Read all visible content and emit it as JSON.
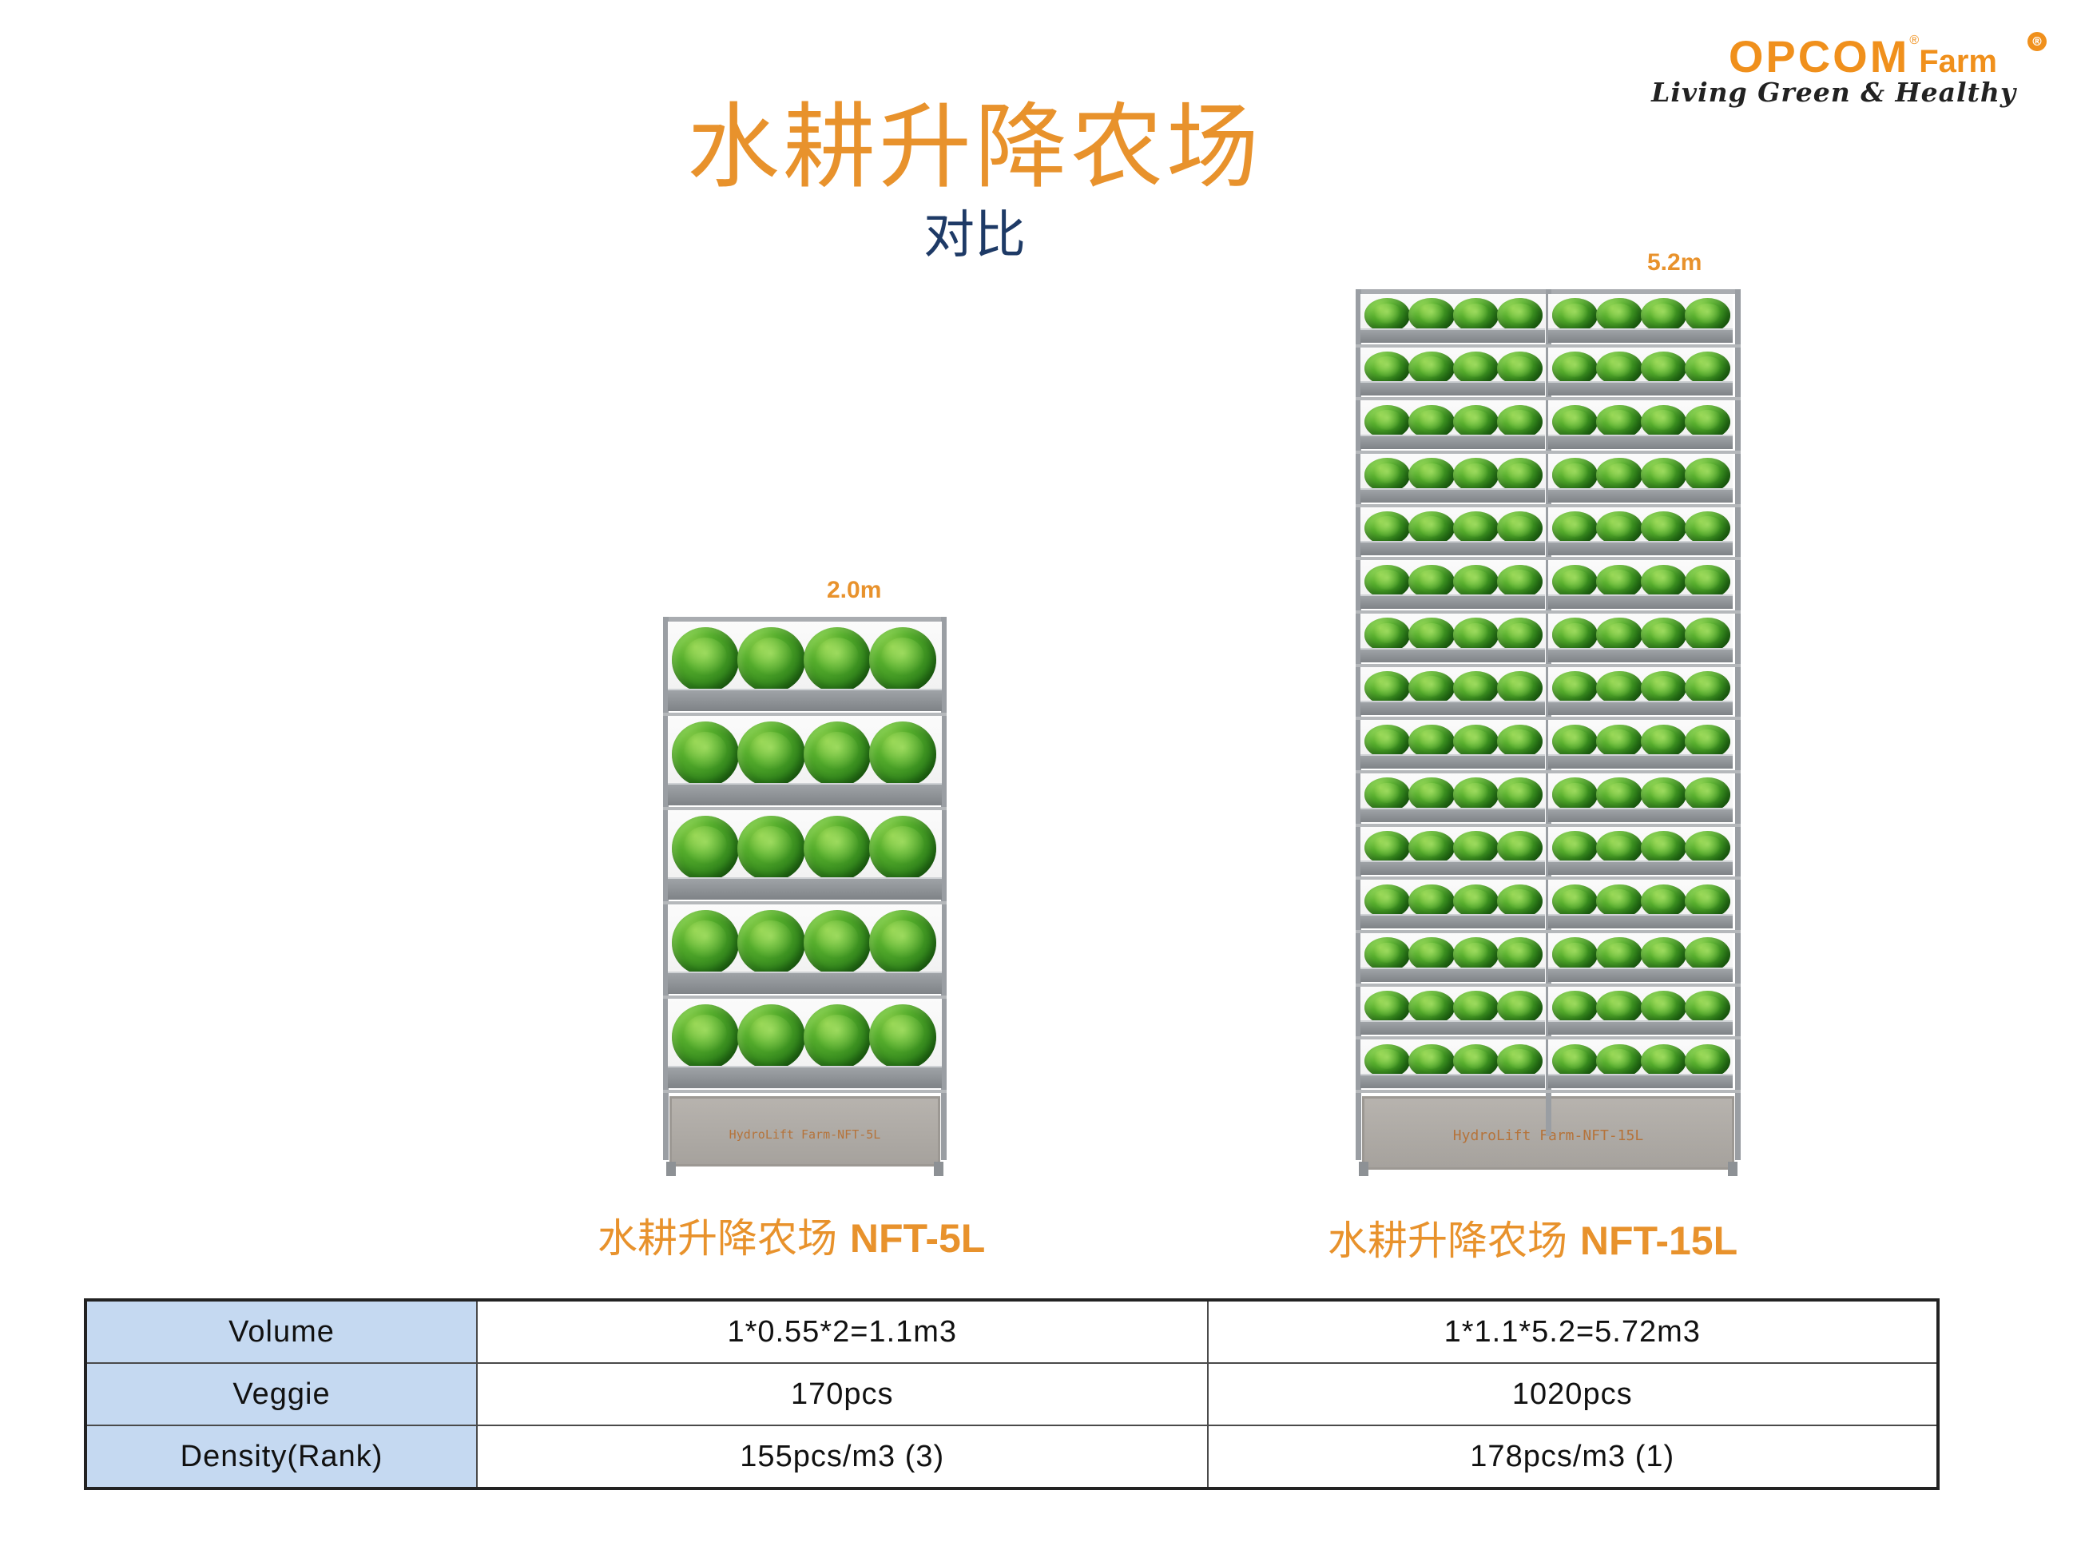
{
  "logo": {
    "brand": "OPCOM",
    "registered": "®",
    "suffix": "Farm",
    "badge": "®",
    "tagline": "Living Green & Healthy"
  },
  "header": {
    "title": "水耕升降农场",
    "subtitle": "对比"
  },
  "farms": [
    {
      "height_label": "2.0m",
      "caption_cn": "水耕升降农场",
      "caption_model": "NFT-5L",
      "tank_label": "HydroLift Farm-NFT-5L",
      "tiers": 5,
      "columns": 1,
      "plants_per_row": 4
    },
    {
      "height_label": "5.2m",
      "caption_cn": "水耕升降农场",
      "caption_model": "NFT-15L",
      "tank_label": "HydroLift Farm-NFT-15L",
      "tiers": 15,
      "columns": 2,
      "plants_per_row": 4
    }
  ],
  "table": {
    "rows": [
      {
        "label": "Volume",
        "values": [
          "1*0.55*2=1.1m3",
          "1*1.1*5.2=5.72m3"
        ]
      },
      {
        "label": "Veggie",
        "values": [
          "170pcs",
          "1020pcs"
        ]
      },
      {
        "label": "Density(Rank)",
        "values": [
          "155pcs/m3 (3)",
          "178pcs/m3 (1)"
        ]
      }
    ]
  },
  "colors": {
    "accent_orange": "#e8922c",
    "subtitle_navy": "#1e3a66",
    "table_label_bg": "#c5d9f1"
  }
}
